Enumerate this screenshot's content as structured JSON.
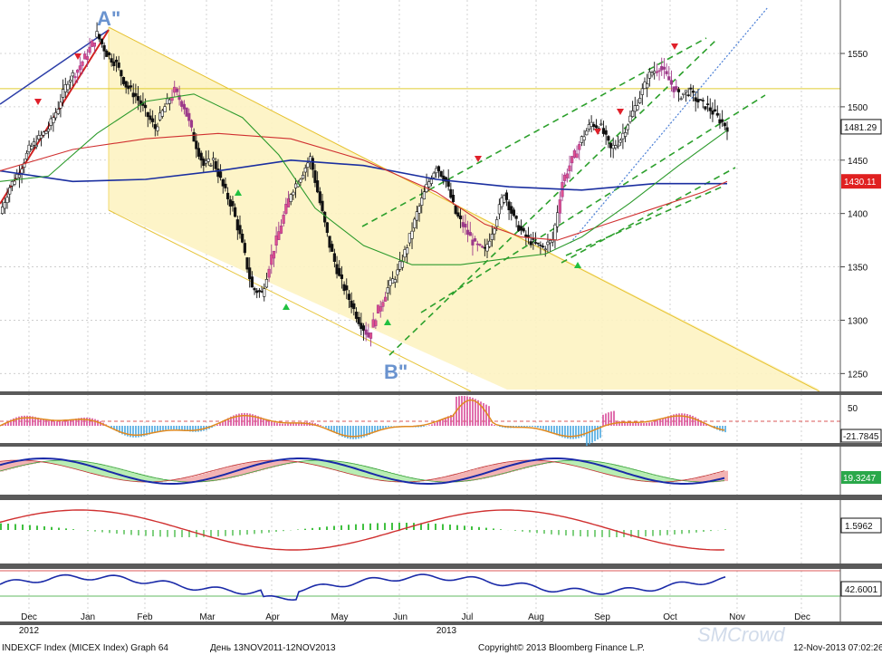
{
  "chart_data": {
    "type": "candlestick",
    "title": "",
    "x": [
      "Dec",
      "Jan",
      "Feb",
      "Mar",
      "Apr",
      "May",
      "Jun",
      "Jul",
      "Aug",
      "Sep",
      "Oct",
      "Nov",
      "Dec"
    ],
    "x_year_labels": [
      "2012",
      "2013"
    ],
    "ylim": [
      1235,
      1595
    ],
    "y_ticks": [
      1250,
      1300,
      1350,
      1400,
      1450,
      1500,
      1550
    ],
    "resistance_level": 1517,
    "last_price_label": "1481.29",
    "ma_label_red": "1430.11",
    "price_path": [
      [
        0,
        1400
      ],
      [
        4,
        1425
      ],
      [
        8,
        1440
      ],
      [
        12,
        1460
      ],
      [
        16,
        1470
      ],
      [
        20,
        1480
      ],
      [
        24,
        1500
      ],
      [
        28,
        1525
      ],
      [
        32,
        1535
      ],
      [
        36,
        1550
      ],
      [
        40,
        1568
      ],
      [
        44,
        1550
      ],
      [
        48,
        1540
      ],
      [
        52,
        1520
      ],
      [
        56,
        1510
      ],
      [
        60,
        1495
      ],
      [
        64,
        1480
      ],
      [
        68,
        1500
      ],
      [
        72,
        1515
      ],
      [
        76,
        1500
      ],
      [
        80,
        1470
      ],
      [
        84,
        1445
      ],
      [
        88,
        1450
      ],
      [
        92,
        1425
      ],
      [
        96,
        1405
      ],
      [
        100,
        1370
      ],
      [
        104,
        1330
      ],
      [
        108,
        1325
      ],
      [
        112,
        1360
      ],
      [
        116,
        1390
      ],
      [
        120,
        1420
      ],
      [
        124,
        1435
      ],
      [
        128,
        1452
      ],
      [
        132,
        1410
      ],
      [
        136,
        1370
      ],
      [
        140,
        1340
      ],
      [
        144,
        1320
      ],
      [
        148,
        1300
      ],
      [
        152,
        1285
      ],
      [
        156,
        1310
      ],
      [
        160,
        1330
      ],
      [
        164,
        1345
      ],
      [
        168,
        1370
      ],
      [
        172,
        1400
      ],
      [
        176,
        1425
      ],
      [
        180,
        1445
      ],
      [
        184,
        1430
      ],
      [
        188,
        1400
      ],
      [
        192,
        1385
      ],
      [
        196,
        1370
      ],
      [
        200,
        1365
      ],
      [
        204,
        1390
      ],
      [
        208,
        1420
      ],
      [
        212,
        1395
      ],
      [
        216,
        1380
      ],
      [
        220,
        1372
      ],
      [
        224,
        1368
      ],
      [
        228,
        1375
      ],
      [
        232,
        1430
      ],
      [
        236,
        1450
      ],
      [
        240,
        1470
      ],
      [
        244,
        1485
      ],
      [
        248,
        1480
      ],
      [
        252,
        1460
      ],
      [
        256,
        1470
      ],
      [
        260,
        1490
      ],
      [
        264,
        1510
      ],
      [
        268,
        1530
      ],
      [
        272,
        1538
      ],
      [
        276,
        1525
      ],
      [
        280,
        1510
      ],
      [
        284,
        1515
      ],
      [
        288,
        1505
      ],
      [
        292,
        1500
      ],
      [
        296,
        1490
      ],
      [
        300,
        1481
      ]
    ],
    "series": [
      {
        "name": "",
        "color": "#1b2fa0",
        "values": [
          [
            0,
            1440
          ],
          [
            30,
            1430
          ],
          [
            60,
            1432
          ],
          [
            90,
            1440
          ],
          [
            120,
            1450
          ],
          [
            150,
            1445
          ],
          [
            180,
            1432
          ],
          [
            210,
            1425
          ],
          [
            240,
            1422
          ],
          [
            270,
            1428
          ],
          [
            300,
            1428
          ]
        ]
      },
      {
        "name": "",
        "color": "#d03030",
        "values": [
          [
            0,
            1440
          ],
          [
            30,
            1460
          ],
          [
            60,
            1470
          ],
          [
            90,
            1475
          ],
          [
            120,
            1470
          ],
          [
            150,
            1450
          ],
          [
            180,
            1420
          ],
          [
            200,
            1390
          ],
          [
            215,
            1378
          ],
          [
            230,
            1375
          ],
          [
            250,
            1390
          ],
          [
            270,
            1405
          ],
          [
            290,
            1420
          ],
          [
            300,
            1430
          ]
        ]
      },
      {
        "name": "",
        "color": "#2c9a2c",
        "values": [
          [
            0,
            1430
          ],
          [
            20,
            1435
          ],
          [
            40,
            1475
          ],
          [
            60,
            1505
          ],
          [
            80,
            1512
          ],
          [
            100,
            1490
          ],
          [
            115,
            1455
          ],
          [
            130,
            1405
          ],
          [
            150,
            1370
          ],
          [
            170,
            1352
          ],
          [
            190,
            1352
          ],
          [
            210,
            1358
          ],
          [
            225,
            1362
          ],
          [
            240,
            1378
          ],
          [
            260,
            1410
          ],
          [
            280,
            1445
          ],
          [
            300,
            1478
          ]
        ]
      }
    ],
    "annotations": {
      "A": "A\"",
      "B": "B\""
    },
    "sub_panels": [
      {
        "name": "panel-1",
        "label_a": "50",
        "label_b": "-21.7845"
      },
      {
        "name": "panel-2",
        "label_a": "19.3247"
      },
      {
        "name": "panel-3",
        "label_a": "1.5962"
      },
      {
        "name": "panel-4",
        "label_a": "42.6001"
      }
    ]
  },
  "footer": {
    "left": "INDEXCF Index (MICEX Index) Graph 64",
    "mid": "День 13NOV2011-12NOV2013",
    "copyright": "Copyright© 2013 Bloomberg Finance L.P.",
    "timestamp": "12-Nov-2013 07:02:26"
  },
  "watermark": "SMCrowd"
}
